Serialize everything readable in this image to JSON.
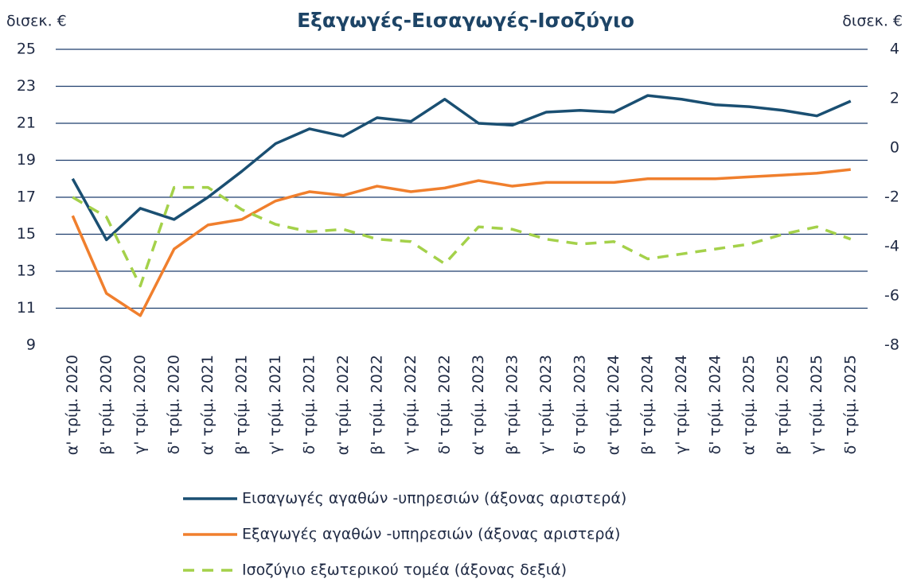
{
  "chart_data": {
    "type": "line",
    "title": "Εξαγωγές-Εισαγωγές-Ισοζύγιο",
    "y_label": "δισεκ. €",
    "y2_label": "δισεκ. €",
    "categories": [
      "α' τρίμ. 2020",
      "β' τρίμ. 2020",
      "γ' τρίμ. 2020",
      "δ' τρίμ. 2020",
      "α' τρίμ. 2021",
      "β' τρίμ. 2021",
      "γ' τρίμ. 2021",
      "δ' τρίμ. 2021",
      "α' τρίμ. 2022",
      "β' τρίμ. 2022",
      "γ' τρίμ. 2022",
      "δ' τρίμ. 2022",
      "α' τρίμ. 2023",
      "β' τρίμ. 2023",
      "γ' τρίμ. 2023",
      "δ' τρίμ. 2023",
      "α' τρίμ. 2024",
      "β' τρίμ. 2024",
      "γ' τρίμ. 2024",
      "δ' τρίμ. 2024",
      "α' τρίμ. 2025",
      "β' τρίμ. 2025",
      "γ' τρίμ. 2025",
      "δ' τρίμ. 2025"
    ],
    "series": [
      {
        "name": "Εισαγωγές αγαθών -υπηρεσιών (άξονας αριστερά)",
        "color": "#1a4f72",
        "dash": false,
        "values": [
          18.0,
          14.7,
          16.4,
          15.8,
          17.0,
          18.4,
          19.9,
          20.7,
          20.3,
          21.3,
          21.1,
          22.3,
          21.0,
          20.9,
          21.6,
          21.7,
          21.6,
          22.5,
          22.3,
          22.0,
          21.9,
          21.7,
          21.4,
          22.2
        ]
      },
      {
        "name": "Εξαγωγές αγαθών -υπηρεσιών (άξονας αριστερά)",
        "color": "#f07f2d",
        "dash": false,
        "values": [
          16.0,
          11.8,
          10.6,
          14.2,
          15.5,
          15.8,
          16.8,
          17.3,
          17.1,
          17.6,
          17.3,
          17.5,
          17.9,
          17.6,
          17.8,
          17.8,
          17.8,
          18.0,
          18.0,
          18.0,
          18.1,
          18.2,
          18.3,
          18.5
        ]
      },
      {
        "name": "Ισοζύγιο εξωτερικού τομέα (άξονας δεξιά)",
        "color": "#a4d14a",
        "dash": true,
        "axis": "y2",
        "values": [
          -2.0,
          -2.8,
          -5.6,
          -1.6,
          -1.6,
          -2.5,
          -3.1,
          -3.4,
          -3.3,
          -3.7,
          -3.8,
          -4.7,
          -3.2,
          -3.3,
          -3.7,
          -3.9,
          -3.8,
          -4.5,
          -4.3,
          -4.1,
          -3.9,
          -3.5,
          -3.2,
          -3.7
        ]
      }
    ],
    "ylim": [
      9,
      25
    ],
    "yticks": [
      9,
      11,
      13,
      15,
      17,
      19,
      21,
      23,
      25
    ],
    "y2lim": [
      -8,
      4
    ],
    "y2ticks": [
      -8,
      -6,
      -4,
      -2,
      0,
      2,
      4
    ],
    "grid": true,
    "grid_color": "#1f3f6e",
    "legend": "bottom"
  }
}
